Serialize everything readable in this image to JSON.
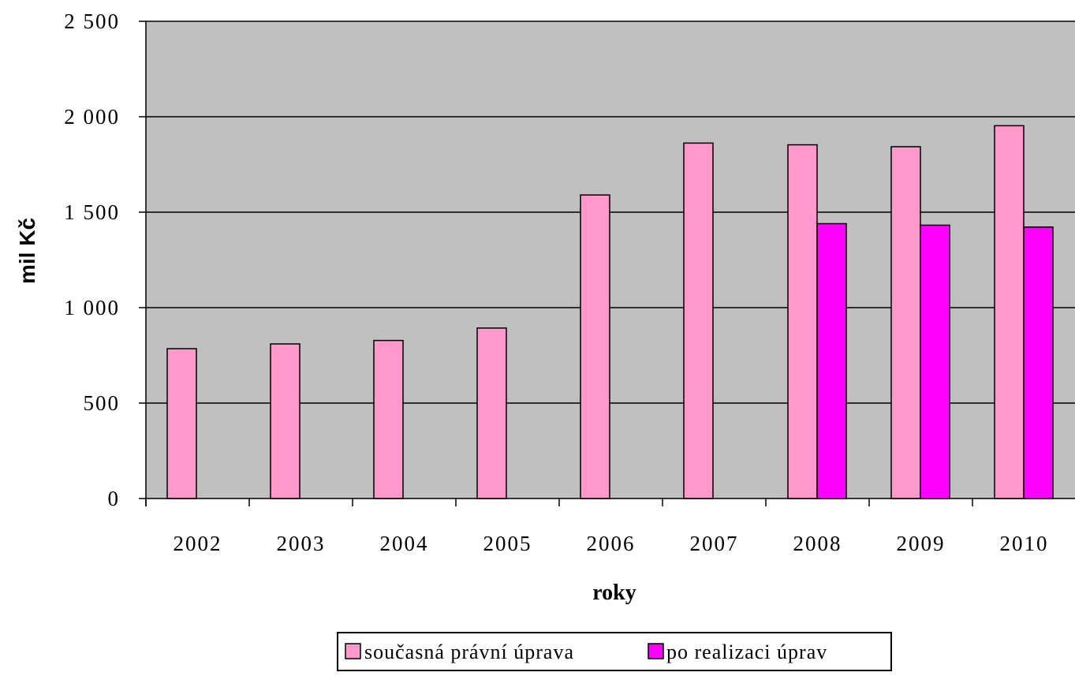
{
  "chart_data": {
    "type": "bar",
    "xlabel": "roky",
    "ylabel": "mil Kč",
    "ylim": [
      0,
      2500
    ],
    "ytick_values": [
      0,
      500,
      1000,
      1500,
      2000,
      2500
    ],
    "ytick_labels": [
      "0",
      "500",
      "1 000",
      "1 500",
      "2 000",
      "2 500"
    ],
    "categories": [
      "2002",
      "2003",
      "2004",
      "2005",
      "2006",
      "2007",
      "2008",
      "2009",
      "2010"
    ],
    "series": [
      {
        "name": "současná právní úprava",
        "color": "#ff99cc",
        "values": [
          785,
          810,
          828,
          893,
          1590,
          1862,
          1853,
          1843,
          1953
        ]
      },
      {
        "name": "po realizaci úprav",
        "color": "#ff00ff",
        "values": [
          null,
          null,
          null,
          null,
          null,
          null,
          1440,
          1432,
          1422
        ]
      }
    ],
    "grid": true,
    "plot_background": "#c0c0c0",
    "legend_position": "bottom"
  }
}
